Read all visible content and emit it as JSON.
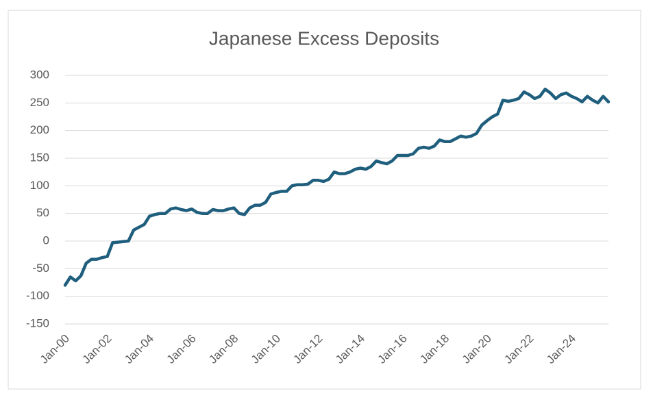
{
  "chart_data": {
    "type": "line",
    "title": "Japanese Excess Deposits",
    "categories": [
      "Jan-00",
      null,
      null,
      null,
      null,
      null,
      null,
      null,
      "Jan-02",
      null,
      null,
      null,
      null,
      null,
      null,
      null,
      "Jan-04",
      null,
      null,
      null,
      null,
      null,
      null,
      null,
      "Jan-06",
      null,
      null,
      null,
      null,
      null,
      null,
      null,
      "Jan-08",
      null,
      null,
      null,
      null,
      null,
      null,
      null,
      "Jan-10",
      null,
      null,
      null,
      null,
      null,
      null,
      null,
      "Jan-12",
      null,
      null,
      null,
      null,
      null,
      null,
      null,
      "Jan-14",
      null,
      null,
      null,
      null,
      null,
      null,
      null,
      "Jan-16",
      null,
      null,
      null,
      null,
      null,
      null,
      null,
      "Jan-18",
      null,
      null,
      null,
      null,
      null,
      null,
      null,
      "Jan-20",
      null,
      null,
      null,
      null,
      null,
      null,
      null,
      "Jan-22",
      null,
      null,
      null,
      null,
      null,
      null,
      null,
      "Jan-24",
      null,
      null,
      null,
      null,
      null,
      null,
      null
    ],
    "series": [
      {
        "name": "Japanese Excess Deposits",
        "color": "#1f5f7d",
        "values": [
          -80,
          -65,
          -72,
          -63,
          -40,
          -33,
          -33,
          -30,
          -28,
          -3,
          -2,
          -1,
          0,
          20,
          25,
          30,
          45,
          48,
          50,
          50,
          58,
          60,
          57,
          55,
          58,
          52,
          50,
          50,
          57,
          55,
          55,
          58,
          60,
          50,
          48,
          60,
          65,
          65,
          70,
          85,
          88,
          90,
          90,
          100,
          102,
          102,
          103,
          110,
          110,
          108,
          112,
          125,
          122,
          122,
          125,
          130,
          132,
          130,
          135,
          145,
          142,
          140,
          145,
          155,
          155,
          155,
          158,
          168,
          170,
          168,
          172,
          183,
          180,
          180,
          185,
          190,
          188,
          190,
          195,
          210,
          218,
          225,
          230,
          255,
          253,
          255,
          258,
          270,
          265,
          258,
          262,
          275,
          268,
          258,
          265,
          268,
          262,
          258,
          252,
          262,
          255,
          250,
          262,
          252
        ]
      }
    ],
    "ylim": [
      -150,
      300
    ],
    "yticks": [
      -150,
      -100,
      -50,
      0,
      50,
      100,
      150,
      200,
      250,
      300
    ],
    "grid": true
  }
}
